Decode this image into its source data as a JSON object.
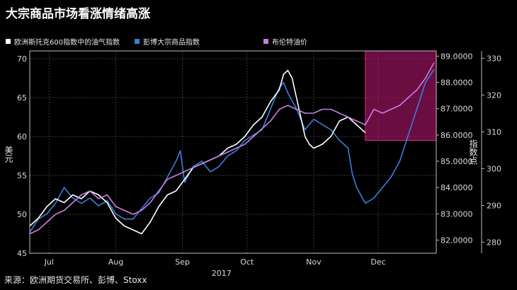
{
  "title": "大宗商品市场看涨情绪高涨",
  "source": "来源：欧洲期货交易所、彭博、Stoxx",
  "legend": [
    {
      "label": "欧洲斯托克600指数中的油气指数",
      "color": "#ffffff"
    },
    {
      "label": "彭博大宗商品指数",
      "color": "#3a7fd9"
    },
    {
      "label": "布伦特油价",
      "color": "#c77ee0"
    }
  ],
  "highlight_color": "#b0156a",
  "chart_data": {
    "type": "line",
    "year_label": "2017",
    "month_labels": [
      "Jul",
      "Aug",
      "Sep",
      "Oct",
      "Nov",
      "Dec"
    ],
    "month_positions": [
      9,
      40,
      71,
      101,
      132,
      162
    ],
    "x_range": [
      0,
      189
    ],
    "grid": true,
    "left_axis": {
      "label": "美元",
      "range": [
        45,
        71
      ],
      "ticks": [
        45,
        50,
        55,
        60,
        65,
        70
      ]
    },
    "middle_axis": {
      "range": [
        81.5,
        89.2
      ],
      "ticks": [
        "82.0000",
        "83.0000",
        "84.0000",
        "85.0000",
        "86.0000",
        "87.0000",
        "88.0000",
        "89.0000"
      ]
    },
    "right_axis": {
      "label": "指数点",
      "range": [
        277,
        332
      ],
      "ticks": [
        280,
        290,
        300,
        310,
        320,
        330
      ]
    },
    "highlight": {
      "x_start": 156,
      "x_end": 189,
      "y_top": 71.0,
      "y_bottom": 59.5
    },
    "series": [
      {
        "name": "欧洲斯托克600指数中的油气指数",
        "color": "#ffffff",
        "axis": "left",
        "x": [
          0,
          4,
          8,
          12,
          16,
          20,
          24,
          28,
          32,
          36,
          40,
          44,
          48,
          52,
          56,
          60,
          64,
          68,
          72,
          76,
          80,
          84,
          88,
          92,
          96,
          100,
          104,
          108,
          112,
          116,
          118,
          120,
          122,
          124,
          126,
          128,
          130,
          132,
          136,
          140,
          144,
          148,
          152,
          156
        ],
        "values": [
          48.5,
          49.5,
          51.0,
          52.0,
          51.5,
          52.5,
          52.0,
          53.0,
          52.5,
          51.5,
          49.5,
          48.5,
          48.0,
          47.5,
          49.0,
          51.0,
          52.5,
          53.0,
          54.5,
          56.0,
          56.5,
          57.0,
          57.5,
          58.5,
          59.0,
          60.0,
          61.5,
          62.5,
          64.5,
          66.0,
          68.0,
          68.5,
          67.5,
          65.0,
          62.5,
          60.0,
          59.0,
          58.5,
          59.0,
          60.0,
          62.0,
          62.5,
          61.5,
          60.5
        ]
      },
      {
        "name": "彭博大宗商品指数",
        "color": "#3a7fd9",
        "axis": "middle",
        "x": [
          0,
          4,
          8,
          12,
          16,
          20,
          24,
          28,
          32,
          36,
          40,
          44,
          48,
          52,
          56,
          60,
          64,
          68,
          70,
          72,
          76,
          80,
          84,
          88,
          92,
          96,
          100,
          104,
          108,
          112,
          116,
          118,
          120,
          124,
          128,
          132,
          136,
          140,
          144,
          148,
          150,
          152,
          156,
          160,
          164,
          168,
          172,
          176,
          180,
          184,
          188
        ],
        "values": [
          82.3,
          82.8,
          83.0,
          83.4,
          84.0,
          83.6,
          83.4,
          83.6,
          83.3,
          83.5,
          83.0,
          82.8,
          82.8,
          83.2,
          83.6,
          83.8,
          84.4,
          85.0,
          85.4,
          84.2,
          84.8,
          85.0,
          84.6,
          84.8,
          85.2,
          85.4,
          85.8,
          86.0,
          86.2,
          87.0,
          87.8,
          88.0,
          87.6,
          87.0,
          86.2,
          86.6,
          86.4,
          86.2,
          85.8,
          85.5,
          84.5,
          84.0,
          83.4,
          83.6,
          84.0,
          84.4,
          85.0,
          86.0,
          87.0,
          88.0,
          88.5
        ]
      },
      {
        "name": "布伦特油价",
        "color": "#c77ee0",
        "axis": "left",
        "x": [
          0,
          4,
          8,
          12,
          16,
          20,
          24,
          28,
          32,
          36,
          40,
          44,
          48,
          52,
          56,
          60,
          64,
          68,
          72,
          76,
          80,
          84,
          88,
          92,
          96,
          100,
          104,
          108,
          112,
          116,
          120,
          124,
          128,
          132,
          136,
          140,
          144,
          148,
          152,
          156,
          158,
          160,
          164,
          168,
          172,
          176,
          180,
          184,
          188
        ],
        "values": [
          47.5,
          48.0,
          49.0,
          50.0,
          50.5,
          51.5,
          52.5,
          53.0,
          52.0,
          52.5,
          51.0,
          50.5,
          50.0,
          50.5,
          51.5,
          53.0,
          54.5,
          55.0,
          55.5,
          56.0,
          56.5,
          57.0,
          57.5,
          58.0,
          58.5,
          59.0,
          60.0,
          61.0,
          62.0,
          63.5,
          64.0,
          63.5,
          63.0,
          63.0,
          63.5,
          63.5,
          63.0,
          62.5,
          62.0,
          61.5,
          62.5,
          63.5,
          63.0,
          63.5,
          64.0,
          65.0,
          66.0,
          67.5,
          69.5
        ]
      }
    ]
  }
}
